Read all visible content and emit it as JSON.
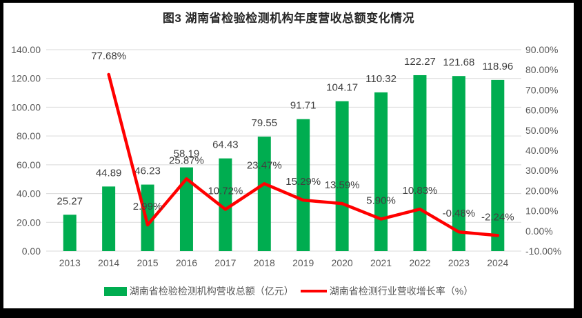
{
  "title": "图3 湖南省检验检测机构年度营收总额变化情况",
  "chart_data": {
    "type": "bar",
    "subtype": "combo-bar-line",
    "categories": [
      "2013",
      "2014",
      "2015",
      "2016",
      "2017",
      "2018",
      "2019",
      "2020",
      "2021",
      "2022",
      "2023",
      "2024"
    ],
    "series": [
      {
        "name": "湖南省检验检测机构营收总额（亿元）",
        "type": "bar",
        "axis": "left",
        "color": "#00AD50",
        "values": [
          25.27,
          44.89,
          46.23,
          58.19,
          64.43,
          79.55,
          91.71,
          104.17,
          110.32,
          122.27,
          121.68,
          118.96
        ],
        "labels": [
          "25.27",
          "44.89",
          "46.23",
          "58.19",
          "64.43",
          "79.55",
          "91.71",
          "104.17",
          "110.32",
          "122.27",
          "121.68",
          "118.96"
        ]
      },
      {
        "name": "湖南省检测行业营收增长率（%）",
        "type": "line",
        "axis": "right",
        "color": "#FF0000",
        "values": [
          null,
          77.68,
          2.99,
          25.87,
          10.72,
          23.47,
          15.29,
          13.59,
          5.9,
          10.83,
          -0.48,
          -2.24
        ],
        "labels": [
          null,
          "77.68%",
          "2.99%",
          "25.87%",
          "10.72%",
          "23.47%",
          "15.29%",
          "13.59%",
          "5.90%",
          "10.83%",
          "-0.48%",
          "-2.24%"
        ]
      }
    ],
    "left_axis": {
      "min": 0,
      "max": 140,
      "step": 20,
      "tick_labels": [
        "0.00",
        "20.00",
        "40.00",
        "60.00",
        "80.00",
        "100.00",
        "120.00",
        "140.00"
      ]
    },
    "right_axis": {
      "min": -10,
      "max": 90,
      "step": 10,
      "tick_labels": [
        "-10.00%",
        "0.00%",
        "10.00%",
        "20.00%",
        "30.00%",
        "40.00%",
        "50.00%",
        "60.00%",
        "70.00%",
        "80.00%",
        "90.00%"
      ]
    },
    "grid": true,
    "legend_position": "bottom",
    "colors": {
      "gridline": "#D9D9D9",
      "axis_tick_label": "#595959",
      "data_label": "#404040",
      "title": "#262626",
      "frame_border": "#000000",
      "background": "#FFFFFF"
    }
  }
}
